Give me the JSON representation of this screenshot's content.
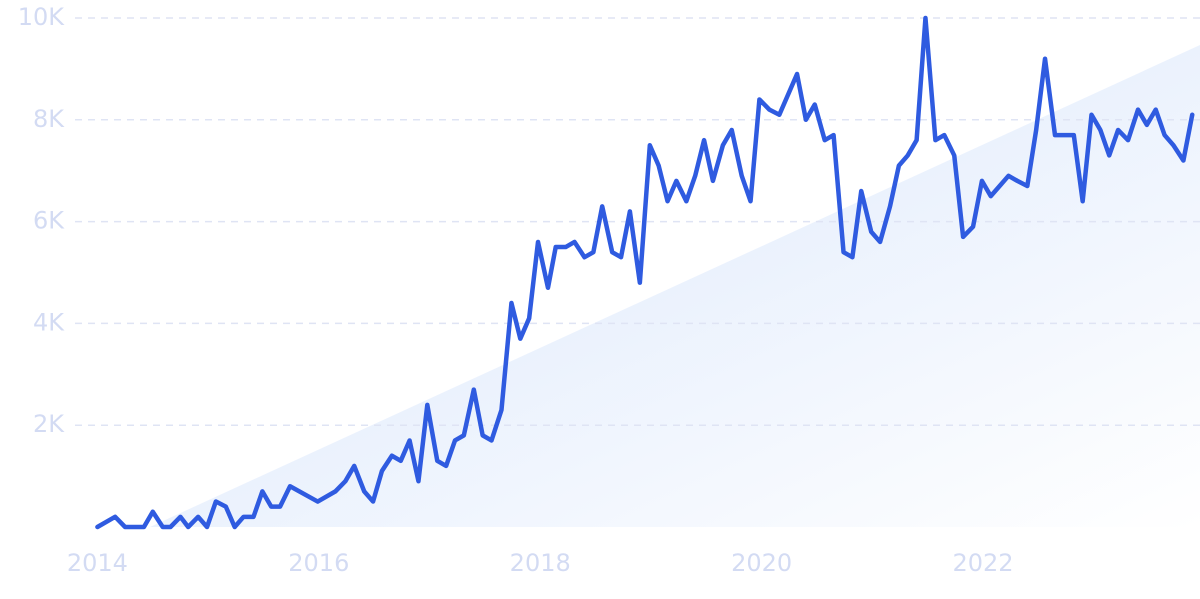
{
  "chart_data": {
    "type": "line",
    "x": [
      2014.0,
      2014.16,
      2014.25,
      2014.42,
      2014.5,
      2014.59,
      2014.66,
      2014.75,
      2014.82,
      2014.91,
      2014.99,
      2015.07,
      2015.16,
      2015.24,
      2015.32,
      2015.41,
      2015.49,
      2015.57,
      2015.65,
      2015.74,
      2015.99,
      2016.15,
      2016.24,
      2016.32,
      2016.41,
      2016.49,
      2016.57,
      2016.66,
      2016.74,
      2016.82,
      2016.9,
      2016.98,
      2017.07,
      2017.15,
      2017.23,
      2017.31,
      2017.4,
      2017.48,
      2017.56,
      2017.65,
      2017.74,
      2017.82,
      2017.9,
      2017.98,
      2018.07,
      2018.14,
      2018.23,
      2018.31,
      2018.4,
      2018.48,
      2018.56,
      2018.65,
      2018.73,
      2018.81,
      2018.9,
      2018.99,
      2019.07,
      2019.15,
      2019.23,
      2019.32,
      2019.4,
      2019.48,
      2019.56,
      2019.65,
      2019.73,
      2019.82,
      2019.9,
      2019.98,
      2020.07,
      2020.16,
      2020.24,
      2020.32,
      2020.4,
      2020.48,
      2020.57,
      2020.65,
      2020.74,
      2020.82,
      2020.9,
      2020.99,
      2021.07,
      2021.16,
      2021.24,
      2021.32,
      2021.4,
      2021.48,
      2021.57,
      2021.65,
      2021.74,
      2021.82,
      2021.91,
      2021.99,
      2022.07,
      2022.15,
      2022.23,
      2022.31,
      2022.4,
      2022.48,
      2022.56,
      2022.65,
      2022.74,
      2022.82,
      2022.9,
      2022.98,
      2023.06,
      2023.14,
      2023.22,
      2023.31,
      2023.4,
      2023.48,
      2023.56,
      2023.64,
      2023.72,
      2023.81,
      2023.89
    ],
    "series": [
      {
        "color": "#2f5be0",
        "values": [
          0,
          200,
          0,
          0,
          300,
          0,
          0,
          200,
          0,
          200,
          0,
          500,
          400,
          0,
          200,
          200,
          700,
          400,
          400,
          800,
          500,
          700,
          900,
          1200,
          700,
          500,
          1100,
          1400,
          1300,
          1700,
          900,
          2400,
          1300,
          1200,
          1700,
          1800,
          2700,
          1800,
          1700,
          2300,
          4400,
          3700,
          4100,
          5600,
          4700,
          5500,
          5500,
          5600,
          5300,
          5400,
          6300,
          5400,
          5300,
          6200,
          4800,
          7500,
          7100,
          6400,
          6800,
          6400,
          6900,
          7600,
          6800,
          7500,
          7800,
          6900,
          6400,
          8400,
          8200,
          8100,
          8500,
          8900,
          8000,
          8300,
          7600,
          7700,
          5400,
          5300,
          6600,
          5800,
          5600,
          6300,
          7100,
          7300,
          7600,
          10000,
          7600,
          7700,
          7300,
          5700,
          5900,
          6800,
          6500,
          6700,
          6900,
          6800,
          6700,
          7800,
          9200,
          7700,
          7700,
          7700,
          6400,
          8100,
          7800,
          7300,
          7800,
          7600,
          8200,
          7900,
          8200,
          7700,
          7500,
          7200,
          8100
        ]
      }
    ],
    "xlim": [
      2013.12,
      2023.96
    ],
    "xticks": [
      2014,
      2016,
      2018,
      2020,
      2022
    ],
    "ylim": [
      0,
      10000
    ],
    "yticks": [
      {
        "value": 2000,
        "label": "2K"
      },
      {
        "value": 4000,
        "label": "4K"
      },
      {
        "value": 6000,
        "label": "6K"
      },
      {
        "value": 8000,
        "label": "8K"
      },
      {
        "value": 10000,
        "label": "10K"
      }
    ],
    "grid": true
  }
}
